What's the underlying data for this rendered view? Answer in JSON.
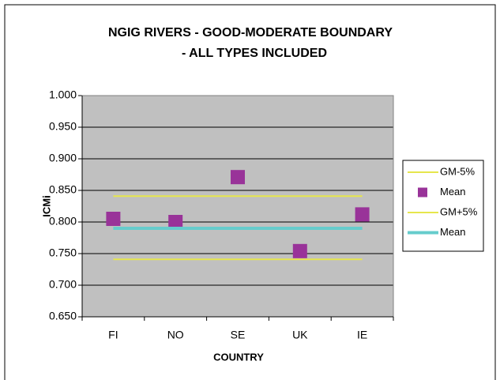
{
  "chart_data": {
    "type": "line",
    "title": [
      "NGIG RIVERS - GOOD-MODERATE BOUNDARY",
      "- ALL TYPES INCLUDED"
    ],
    "x_label": "COUNTRY",
    "y_label": "ICMi",
    "categories": [
      "FI",
      "NO",
      "SE",
      "UK",
      "IE"
    ],
    "series": [
      {
        "name": "GM-5%",
        "color": "#e6e64c",
        "style": "line",
        "values": [
          0.741,
          0.741,
          0.741,
          0.741,
          0.741
        ]
      },
      {
        "name": "Mean",
        "color": "#993399",
        "style": "marker",
        "values": [
          0.805,
          0.8,
          0.871,
          0.754,
          0.812
        ]
      },
      {
        "name": "GM+5%",
        "color": "#e6e64c",
        "style": "line",
        "values": [
          0.841,
          0.841,
          0.841,
          0.841,
          0.841
        ]
      },
      {
        "name": "Mean",
        "color": "#66cccc",
        "style": "thick-line",
        "values": [
          0.79,
          0.79,
          0.79,
          0.79,
          0.79
        ]
      }
    ],
    "ylim": [
      0.65,
      1.0
    ],
    "yticks": [
      {
        "value": 0.65,
        "label": "0.650"
      },
      {
        "value": 0.7,
        "label": "0.700"
      },
      {
        "value": 0.75,
        "label": "0.750"
      },
      {
        "value": 0.8,
        "label": "0.800"
      },
      {
        "value": 0.85,
        "label": "0.850"
      },
      {
        "value": 0.9,
        "label": "0.900"
      },
      {
        "value": 0.95,
        "label": "0.950"
      },
      {
        "value": 1.0,
        "label": "1.000"
      }
    ],
    "grid": true,
    "legend": "right"
  }
}
